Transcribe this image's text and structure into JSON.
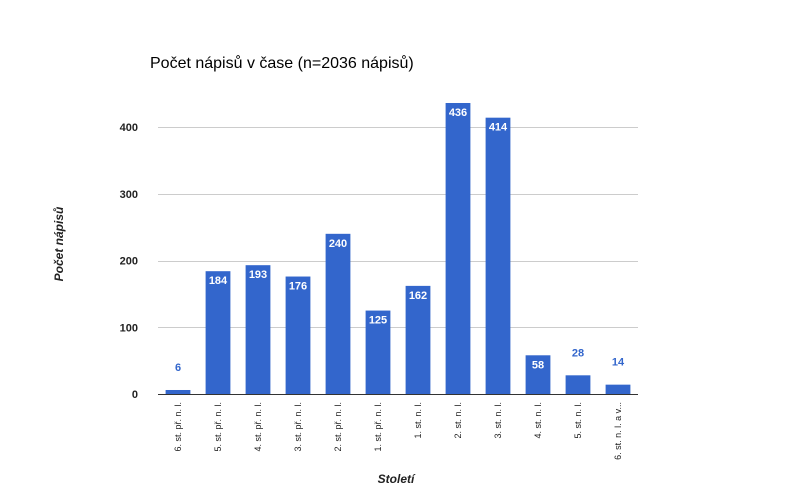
{
  "chart_data": {
    "type": "bar",
    "title": "Počet nápisů v čase (n=2036 nápisů)",
    "xlabel": "Století",
    "ylabel": "Počet nápisů",
    "categories": [
      "6. st. př. n. l.",
      "5. st. př. n. l.",
      "4. st. př. n. l.",
      "3. st. př. n. l.",
      "2. st. př. n. l.",
      "1. st. př. n. l.",
      "1. st. n. l.",
      "2. st. n. l.",
      "3. st. n. l.",
      "4. st. n. l.",
      "5. st. n. l.",
      "6. st. n. l. a v..."
    ],
    "values": [
      6,
      184,
      193,
      176,
      240,
      125,
      162,
      436,
      414,
      58,
      28,
      14
    ],
    "ylim": [
      0,
      436
    ],
    "yticks": [
      0,
      100,
      200,
      300,
      400
    ],
    "grid": true,
    "legend": "none",
    "bar_color": "#3366cc",
    "grid_color": "#cccccc",
    "axis_color": "#333333"
  }
}
